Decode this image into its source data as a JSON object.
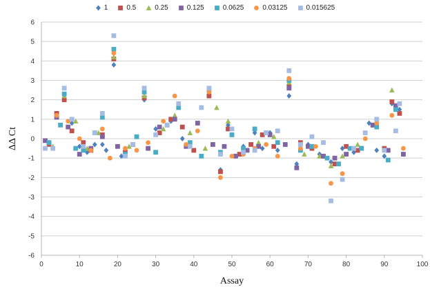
{
  "chart_data": {
    "type": "scatter",
    "title": "",
    "xlabel": "Assay",
    "ylabel": "ΔΔ Ct",
    "xlim": [
      0,
      100
    ],
    "ylim": [
      -6,
      6
    ],
    "xticks": [
      0,
      10,
      20,
      30,
      40,
      50,
      60,
      70,
      80,
      90,
      100
    ],
    "yticks": [
      -6,
      -5,
      -4,
      -3,
      -2,
      -1,
      0,
      1,
      2,
      3,
      4,
      5,
      6
    ],
    "grid": "horizontal",
    "legend_position": "top",
    "series": [
      {
        "name": "1",
        "marker": "diamond",
        "color": "#4f81bd",
        "x": [
          2,
          4,
          6,
          8,
          10,
          12,
          14,
          16,
          17,
          19,
          21,
          27,
          30,
          34,
          37,
          44,
          47,
          49,
          51,
          53,
          56,
          58,
          60,
          62,
          65,
          67,
          70,
          73,
          76,
          79,
          82,
          86,
          88,
          90,
          92,
          94
        ],
        "y": [
          -0.2,
          1.2,
          2.1,
          0.8,
          -0.4,
          -0.7,
          -0.3,
          -0.3,
          -0.6,
          3.8,
          -0.9,
          2.0,
          0.5,
          0.9,
          0.0,
          2.3,
          -1.6,
          0.7,
          -0.9,
          -0.4,
          0.3,
          -0.5,
          0.3,
          -0.6,
          2.2,
          -1.3,
          -0.3,
          -0.8,
          -1.2,
          -0.5,
          -0.7,
          0.8,
          -0.6,
          -0.9,
          1.8,
          1.5
        ]
      },
      {
        "name": "0.5",
        "marker": "square",
        "color": "#c0504d",
        "x": [
          2,
          4,
          6,
          8,
          11,
          13,
          16,
          19,
          22,
          27,
          31,
          34,
          37,
          40,
          44,
          47,
          49,
          52,
          55,
          58,
          61,
          65,
          68,
          71,
          74,
          77,
          80,
          83,
          87,
          90,
          92,
          94
        ],
        "y": [
          -0.3,
          1.3,
          2.0,
          0.4,
          -0.2,
          -0.6,
          0.2,
          4.1,
          -0.7,
          2.1,
          0.3,
          1.0,
          0.6,
          -0.6,
          2.2,
          -1.7,
          0.5,
          -0.8,
          -0.3,
          0.2,
          -0.4,
          2.7,
          -0.2,
          -0.5,
          -0.9,
          -1.3,
          -0.4,
          -0.6,
          0.7,
          -0.5,
          1.9,
          1.3
        ]
      },
      {
        "name": "0.25",
        "marker": "triangle",
        "color": "#9bbb59",
        "x": [
          3,
          6,
          9,
          12,
          15,
          19,
          23,
          27,
          32,
          35,
          39,
          43,
          46,
          49,
          53,
          57,
          61,
          65,
          69,
          73,
          76,
          79,
          83,
          88,
          92
        ],
        "y": [
          -0.4,
          2.2,
          0.9,
          -0.5,
          0.3,
          4.2,
          -0.4,
          2.2,
          0.5,
          1.2,
          0.3,
          -0.5,
          1.6,
          0.9,
          -0.6,
          -0.2,
          0.1,
          2.9,
          -0.8,
          -0.9,
          -1.4,
          -0.9,
          -0.3,
          0.9,
          2.5
        ]
      },
      {
        "name": "0.125",
        "marker": "square",
        "color": "#8064a2",
        "x": [
          1,
          4,
          7,
          10,
          13,
          16,
          20,
          24,
          28,
          31,
          35,
          38,
          41,
          45,
          48,
          51,
          54,
          57,
          60,
          64,
          65,
          67,
          70,
          74,
          77,
          80,
          84,
          87,
          91,
          93,
          95
        ],
        "y": [
          -0.1,
          1.1,
          0.6,
          -0.8,
          -0.5,
          0.1,
          -0.4,
          -0.3,
          -0.5,
          0.6,
          1.0,
          -0.4,
          0.8,
          -0.3,
          -0.4,
          -0.9,
          -0.6,
          -0.4,
          0.2,
          -0.3,
          2.6,
          -1.5,
          -0.4,
          -0.9,
          -1.0,
          -0.8,
          -0.5,
          0.7,
          -0.6,
          1.7,
          -0.8
        ]
      },
      {
        "name": "0.0625",
        "marker": "square",
        "color": "#4bacc6",
        "x": [
          2,
          5,
          6,
          9,
          11,
          14,
          16,
          19,
          22,
          25,
          27,
          30,
          33,
          36,
          39,
          42,
          44,
          47,
          50,
          53,
          56,
          59,
          62,
          65,
          68,
          71,
          75,
          78,
          81,
          84,
          88,
          91,
          93
        ],
        "y": [
          -0.2,
          0.7,
          2.3,
          -0.5,
          -0.6,
          0.3,
          1.1,
          4.6,
          -0.8,
          0.1,
          2.4,
          -0.7,
          0.7,
          1.6,
          -0.2,
          -0.9,
          2.5,
          -0.7,
          0.2,
          -0.5,
          0.5,
          0.3,
          -0.2,
          3.0,
          -0.6,
          -0.4,
          -1.0,
          -1.3,
          -0.5,
          -0.5,
          0.6,
          -1.1,
          1.5
        ]
      },
      {
        "name": "0.03125",
        "marker": "circle",
        "color": "#f79646",
        "x": [
          1,
          4,
          7,
          10,
          13,
          16,
          18,
          19,
          22,
          25,
          28,
          32,
          35,
          38,
          41,
          44,
          47,
          50,
          53,
          56,
          59,
          62,
          65,
          68,
          72,
          76,
          79,
          82,
          85,
          88,
          92,
          95
        ],
        "y": [
          -0.5,
          1.2,
          0.9,
          0.0,
          -0.6,
          0.5,
          -1.0,
          4.4,
          -0.5,
          -0.6,
          -0.2,
          0.9,
          2.2,
          -0.3,
          0.4,
          2.4,
          -2.0,
          -0.9,
          -0.8,
          -0.5,
          -0.3,
          -0.9,
          3.1,
          -0.5,
          -0.4,
          -2.3,
          -1.8,
          -0.5,
          0.0,
          0.8,
          1.2,
          -0.5
        ]
      },
      {
        "name": "0.015625",
        "marker": "square",
        "color": "#a5bde2",
        "x": [
          1,
          3,
          6,
          8,
          11,
          14,
          16,
          19,
          22,
          24,
          27,
          30,
          33,
          36,
          39,
          42,
          44,
          47,
          50,
          53,
          56,
          59,
          62,
          65,
          68,
          71,
          74,
          76,
          79,
          82,
          85,
          88,
          90,
          93,
          94
        ],
        "y": [
          -0.5,
          -0.5,
          2.6,
          1.0,
          -0.4,
          0.3,
          1.3,
          5.3,
          -0.9,
          -0.3,
          2.6,
          0.2,
          0.7,
          1.8,
          -0.4,
          1.6,
          2.6,
          -0.8,
          0.5,
          -0.7,
          -0.6,
          0.3,
          0.4,
          3.5,
          -0.3,
          0.1,
          -0.2,
          -3.2,
          -2.1,
          -0.5,
          0.3,
          1.0,
          -0.6,
          0.4,
          1.8
        ]
      }
    ]
  }
}
